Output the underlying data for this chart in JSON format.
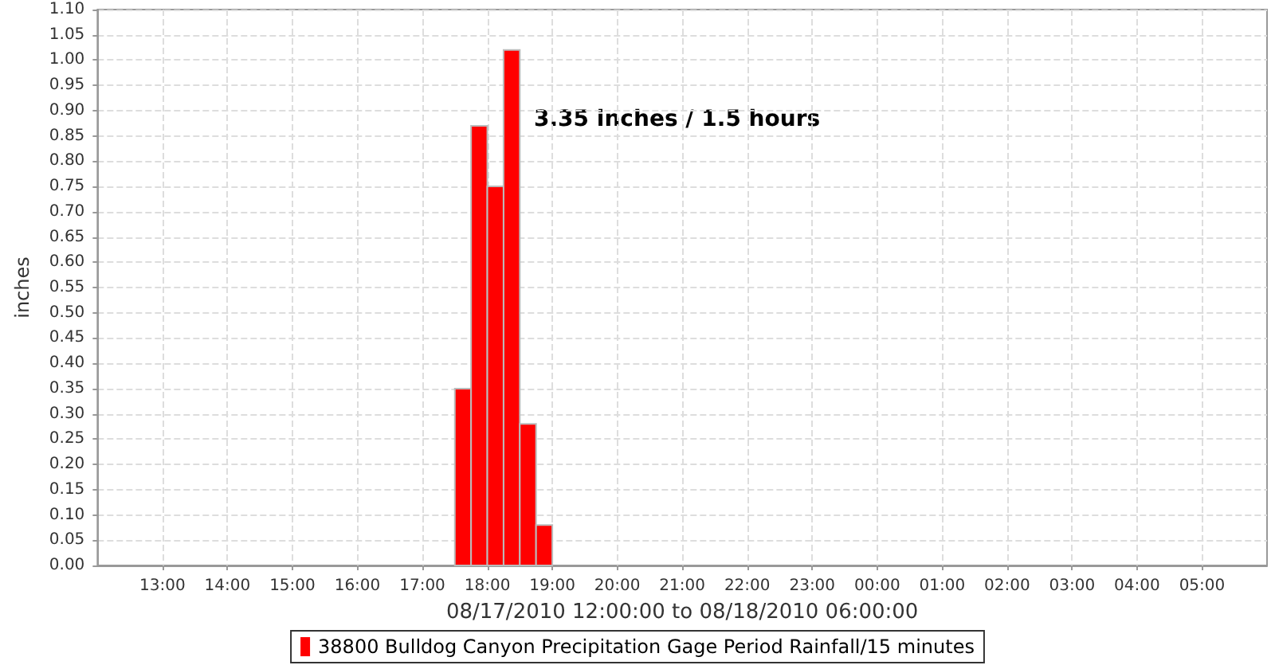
{
  "chart_data": {
    "type": "histogram",
    "xlabel": "08/17/2010 12:00:00 to 08/18/2010 06:00:00",
    "ylabel": "inches",
    "annotations": [
      "3.35 inches / 1.5 hours"
    ],
    "bins": [
      "2010-08-17T17:30",
      "2010-08-17T17:45",
      "2010-08-17T18:00",
      "2010-08-17T18:15",
      "2010-08-17T18:30",
      "2010-08-17T18:45",
      "2010-08-17T19:00"
    ],
    "series": [
      {
        "name": "38800 Bulldog Canyon Precipitation Gage Period Rainfall/15 minutes",
        "color": "#ff0000",
        "values": [
          0.35,
          0.87,
          0.75,
          1.02,
          0.28,
          0.08
        ]
      }
    ],
    "xlim": [
      "2010-08-17T12:00",
      "2010-08-18T06:00"
    ],
    "xticks": [
      {
        "value": "2010-08-17T13:00",
        "label": "13:00"
      },
      {
        "value": "2010-08-17T14:00",
        "label": "14:00"
      },
      {
        "value": "2010-08-17T15:00",
        "label": "15:00"
      },
      {
        "value": "2010-08-17T16:00",
        "label": "16:00"
      },
      {
        "value": "2010-08-17T17:00",
        "label": "17:00"
      },
      {
        "value": "2010-08-17T18:00",
        "label": "18:00"
      },
      {
        "value": "2010-08-17T19:00",
        "label": "19:00"
      },
      {
        "value": "2010-08-17T20:00",
        "label": "20:00"
      },
      {
        "value": "2010-08-17T21:00",
        "label": "21:00"
      },
      {
        "value": "2010-08-17T22:00",
        "label": "22:00"
      },
      {
        "value": "2010-08-17T23:00",
        "label": "23:00"
      },
      {
        "value": "2010-08-18T00:00",
        "label": "00:00"
      },
      {
        "value": "2010-08-18T01:00",
        "label": "01:00"
      },
      {
        "value": "2010-08-18T02:00",
        "label": "02:00"
      },
      {
        "value": "2010-08-18T03:00",
        "label": "03:00"
      },
      {
        "value": "2010-08-18T04:00",
        "label": "04:00"
      },
      {
        "value": "2010-08-18T05:00",
        "label": "05:00"
      }
    ],
    "ylim": [
      0,
      1.1
    ],
    "yticks": [
      {
        "value": 0,
        "label": "0.00"
      },
      {
        "value": 0.05,
        "label": "0.05"
      },
      {
        "value": 0.1,
        "label": "0.10"
      },
      {
        "value": 0.15,
        "label": "0.15"
      },
      {
        "value": 0.2,
        "label": "0.20"
      },
      {
        "value": 0.25,
        "label": "0.25"
      },
      {
        "value": 0.3,
        "label": "0.30"
      },
      {
        "value": 0.35,
        "label": "0.35"
      },
      {
        "value": 0.4,
        "label": "0.40"
      },
      {
        "value": 0.45,
        "label": "0.45"
      },
      {
        "value": 0.5,
        "label": "0.50"
      },
      {
        "value": 0.55,
        "label": "0.55"
      },
      {
        "value": 0.6,
        "label": "0.60"
      },
      {
        "value": 0.65,
        "label": "0.65"
      },
      {
        "value": 0.7,
        "label": "0.70"
      },
      {
        "value": 0.75,
        "label": "0.75"
      },
      {
        "value": 0.8,
        "label": "0.80"
      },
      {
        "value": 0.85,
        "label": "0.85"
      },
      {
        "value": 0.9,
        "label": "0.90"
      },
      {
        "value": 0.95,
        "label": "0.95"
      },
      {
        "value": 1.0,
        "label": "1.00"
      },
      {
        "value": 1.05,
        "label": "1.05"
      },
      {
        "value": 1.1,
        "label": "1.10"
      }
    ],
    "grid": true,
    "legend": "bottom"
  }
}
